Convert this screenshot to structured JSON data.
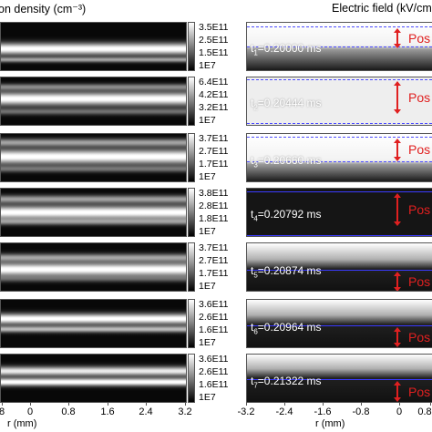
{
  "titles": {
    "left": "on density (cm⁻³)",
    "right": "Electric field (kV/cm"
  },
  "colorbars": [
    {
      "ticks": [
        "3.5E11",
        "2.5E11",
        "1.5E11",
        "1E7"
      ]
    },
    {
      "ticks": [
        "6.4E11",
        "4.2E11",
        "3.2E11",
        "1E7"
      ]
    },
    {
      "ticks": [
        "3.7E11",
        "2.7E11",
        "1.7E11",
        "1E7"
      ]
    },
    {
      "ticks": [
        "3.8E11",
        "2.8E11",
        "1.8E11",
        "1E7"
      ]
    },
    {
      "ticks": [
        "3.7E11",
        "2.7E11",
        "1.7E11",
        "1E7"
      ]
    },
    {
      "ticks": [
        "3.6E11",
        "2.6E11",
        "1.6E11",
        "1E7"
      ]
    },
    {
      "ticks": [
        "3.6E11",
        "2.6E11",
        "1.6E11",
        "1E7"
      ]
    }
  ],
  "time_labels": [
    {
      "sym": "t",
      "sub": "1",
      "rest": "=0.20000 ms"
    },
    {
      "sym": "t",
      "sub": "2",
      "rest": "=0.20444 ms"
    },
    {
      "sym": "t",
      "sub": "3",
      "rest": "=0.20660 ms"
    },
    {
      "sym": "t",
      "sub": "4",
      "rest": "=0.20792 ms"
    },
    {
      "sym": "t",
      "sub": "5",
      "rest": "=0.20874 ms"
    },
    {
      "sym": "t",
      "sub": "6",
      "rest": "=0.20964 ms"
    },
    {
      "sym": "t",
      "sub": "7",
      "rest": "=0.21322 ms"
    }
  ],
  "pos_label": "Pos",
  "x_axis_left": {
    "ticks": [
      "8",
      "0",
      "0.8",
      "1.6",
      "2.4",
      "3.2"
    ],
    "label": "r (mm)"
  },
  "x_axis_right": {
    "ticks": [
      "-3.2",
      "-2.4",
      "-1.6",
      "-0.8",
      "0",
      "0.8"
    ],
    "label": "r (mm)"
  }
}
